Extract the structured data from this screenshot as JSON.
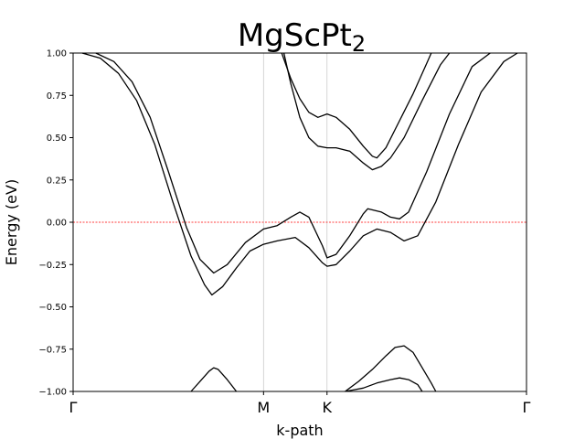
{
  "chart_data": {
    "type": "line",
    "title": {
      "main": "MgScPt",
      "subscript": "2"
    },
    "xlabel": "k-path",
    "ylabel": "Energy (eV)",
    "ylim": [
      -1.0,
      1.0
    ],
    "xlim": [
      0,
      1.0
    ],
    "yticks": [
      1.0,
      0.75,
      0.5,
      0.25,
      0.0,
      -0.25,
      -0.5,
      -0.75,
      -1.0
    ],
    "ytick_labels": [
      "1.00",
      "0.75",
      "0.50",
      "0.25",
      "0.00",
      "−0.25",
      "−0.50",
      "−0.75",
      "−1.00"
    ],
    "kpoints": [
      {
        "label": "Γ",
        "x": 0.0
      },
      {
        "label": "M",
        "x": 0.42
      },
      {
        "label": "K",
        "x": 0.56
      },
      {
        "label": "Γ",
        "x": 1.0
      }
    ],
    "fermi_level": 0.0,
    "colors": {
      "bands": "#000000",
      "fermi": "#ff0000",
      "kline": "#cccccc"
    },
    "series": [
      {
        "values": [
          [
            0.02,
            1.0
          ],
          [
            0.06,
            0.97
          ],
          [
            0.1,
            0.88
          ],
          [
            0.14,
            0.72
          ],
          [
            0.18,
            0.46
          ],
          [
            0.22,
            0.12
          ],
          [
            0.26,
            -0.2
          ],
          [
            0.29,
            -0.37
          ],
          [
            0.306,
            -0.43
          ],
          [
            0.33,
            -0.38
          ],
          [
            0.36,
            -0.27
          ],
          [
            0.39,
            -0.17
          ],
          [
            0.42,
            -0.13
          ],
          [
            0.45,
            -0.11
          ],
          [
            0.49,
            -0.09
          ],
          [
            0.52,
            -0.15
          ],
          [
            0.55,
            -0.24
          ],
          [
            0.56,
            -0.26
          ],
          [
            0.58,
            -0.25
          ],
          [
            0.61,
            -0.17
          ],
          [
            0.64,
            -0.08
          ],
          [
            0.67,
            -0.04
          ],
          [
            0.7,
            -0.06
          ],
          [
            0.73,
            -0.11
          ],
          [
            0.76,
            -0.08
          ],
          [
            0.8,
            0.12
          ],
          [
            0.85,
            0.46
          ],
          [
            0.9,
            0.77
          ],
          [
            0.95,
            0.95
          ],
          [
            0.98,
            1.0
          ]
        ]
      },
      {
        "values": [
          [
            0.05,
            1.0
          ],
          [
            0.09,
            0.95
          ],
          [
            0.13,
            0.83
          ],
          [
            0.17,
            0.62
          ],
          [
            0.21,
            0.3
          ],
          [
            0.25,
            -0.03
          ],
          [
            0.28,
            -0.22
          ],
          [
            0.31,
            -0.3
          ],
          [
            0.34,
            -0.25
          ],
          [
            0.38,
            -0.12
          ],
          [
            0.42,
            -0.04
          ],
          [
            0.45,
            -0.02
          ],
          [
            0.48,
            0.03
          ],
          [
            0.5,
            0.06
          ],
          [
            0.52,
            0.03
          ],
          [
            0.55,
            -0.14
          ],
          [
            0.56,
            -0.21
          ],
          [
            0.58,
            -0.19
          ],
          [
            0.61,
            -0.08
          ],
          [
            0.64,
            0.05
          ],
          [
            0.65,
            0.08
          ],
          [
            0.68,
            0.06
          ],
          [
            0.7,
            0.03
          ],
          [
            0.72,
            0.02
          ],
          [
            0.74,
            0.06
          ],
          [
            0.78,
            0.3
          ],
          [
            0.83,
            0.64
          ],
          [
            0.88,
            0.92
          ],
          [
            0.92,
            1.0
          ]
        ]
      },
      {
        "values": [
          [
            0.465,
            1.0
          ],
          [
            0.48,
            0.82
          ],
          [
            0.5,
            0.62
          ],
          [
            0.52,
            0.5
          ],
          [
            0.54,
            0.45
          ],
          [
            0.56,
            0.44
          ],
          [
            0.58,
            0.44
          ],
          [
            0.61,
            0.42
          ],
          [
            0.64,
            0.35
          ],
          [
            0.66,
            0.31
          ],
          [
            0.68,
            0.33
          ],
          [
            0.7,
            0.38
          ],
          [
            0.73,
            0.5
          ],
          [
            0.77,
            0.72
          ],
          [
            0.81,
            0.93
          ],
          [
            0.83,
            1.0
          ]
        ]
      },
      {
        "values": [
          [
            0.46,
            1.0
          ],
          [
            0.48,
            0.85
          ],
          [
            0.5,
            0.73
          ],
          [
            0.52,
            0.65
          ],
          [
            0.54,
            0.62
          ],
          [
            0.56,
            0.64
          ],
          [
            0.58,
            0.62
          ],
          [
            0.61,
            0.55
          ],
          [
            0.64,
            0.45
          ],
          [
            0.66,
            0.39
          ],
          [
            0.67,
            0.38
          ],
          [
            0.69,
            0.44
          ],
          [
            0.72,
            0.6
          ],
          [
            0.75,
            0.76
          ],
          [
            0.78,
            0.94
          ],
          [
            0.79,
            1.0
          ]
        ]
      },
      {
        "values": [
          [
            0.26,
            -1.0
          ],
          [
            0.28,
            -0.94
          ],
          [
            0.3,
            -0.88
          ],
          [
            0.31,
            -0.86
          ],
          [
            0.32,
            -0.87
          ],
          [
            0.34,
            -0.93
          ],
          [
            0.36,
            -1.0
          ]
        ]
      },
      {
        "values": [
          [
            0.6,
            -1.0
          ],
          [
            0.63,
            -0.94
          ],
          [
            0.66,
            -0.87
          ],
          [
            0.69,
            -0.79
          ],
          [
            0.71,
            -0.74
          ],
          [
            0.73,
            -0.73
          ],
          [
            0.75,
            -0.77
          ],
          [
            0.77,
            -0.86
          ],
          [
            0.79,
            -0.95
          ],
          [
            0.8,
            -1.0
          ]
        ]
      },
      {
        "values": [
          [
            0.6,
            -1.0
          ],
          [
            0.64,
            -0.98
          ],
          [
            0.67,
            -0.95
          ],
          [
            0.7,
            -0.93
          ],
          [
            0.72,
            -0.92
          ],
          [
            0.74,
            -0.93
          ],
          [
            0.76,
            -0.96
          ],
          [
            0.77,
            -1.0
          ]
        ]
      }
    ]
  }
}
